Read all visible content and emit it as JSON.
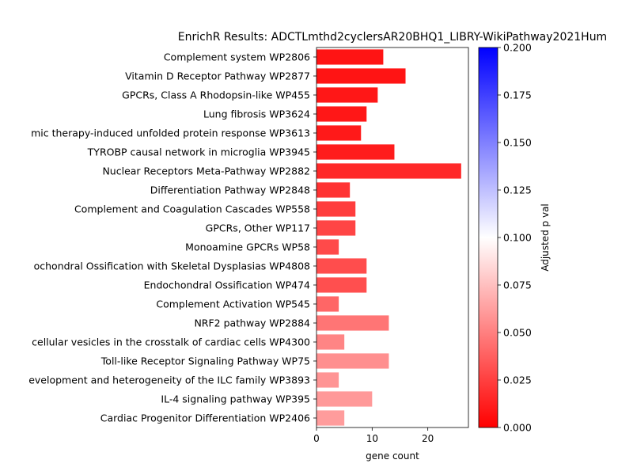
{
  "chart_data": {
    "type": "bar",
    "orientation": "horizontal",
    "title": "EnrichR Results: ADCTLmthd2cyclersAR20BHQ1_LIBRY-WikiPathway2021Hum",
    "xlabel": "gene count",
    "ylabel": "",
    "xlim": [
      0,
      27.3
    ],
    "x_ticks": [
      0,
      10,
      20
    ],
    "categories": [
      "Complement system WP2806",
      "Vitamin D Receptor Pathway WP2877",
      "GPCRs, Class A Rhodopsin-like WP455",
      "Lung fibrosis WP3624",
      "mic therapy-induced unfolded protein response WP3613",
      "TYROBP causal network in microglia WP3945",
      "Nuclear Receptors Meta-Pathway WP2882",
      "Differentiation Pathway WP2848",
      "Complement and Coagulation Cascades WP558",
      "GPCRs, Other WP117",
      "Monoamine GPCRs WP58",
      "ochondral Ossification with Skeletal Dysplasias WP4808",
      "Endochondral Ossification WP474",
      "Complement Activation WP545",
      "NRF2 pathway WP2884",
      "cellular vesicles in the crosstalk of cardiac cells WP4300",
      "Toll-like Receptor Signaling Pathway WP75",
      "evelopment and heterogeneity of the ILC family WP3893",
      "IL-4 signaling pathway WP395",
      "Cardiac Progenitor Differentiation WP2406"
    ],
    "values": [
      12,
      16,
      11,
      9,
      8,
      14,
      26,
      6,
      7,
      7,
      4,
      9,
      9,
      4,
      13,
      5,
      13,
      4,
      10,
      5
    ],
    "adjusted_p": [
      0.008,
      0.008,
      0.009,
      0.009,
      0.01,
      0.011,
      0.016,
      0.02,
      0.024,
      0.027,
      0.029,
      0.03,
      0.031,
      0.04,
      0.046,
      0.052,
      0.056,
      0.058,
      0.06,
      0.061
    ],
    "colorbar": {
      "label": "Adjusted p val",
      "range": [
        0,
        0.2
      ],
      "ticks": [
        "0.000",
        "0.025",
        "0.050",
        "0.075",
        "0.100",
        "0.125",
        "0.150",
        "0.175",
        "0.200"
      ],
      "colormap": [
        "#ff0000",
        "#ffffff",
        "#0000ff"
      ]
    }
  }
}
